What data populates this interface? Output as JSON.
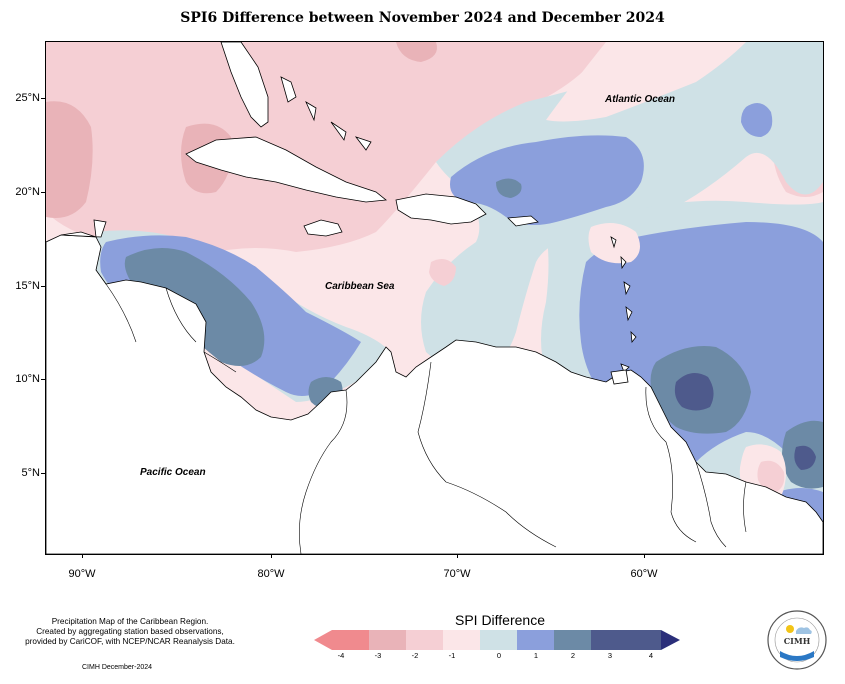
{
  "title": "SPI6 Difference between November 2024 and December 2024",
  "map": {
    "lat_labels": [
      "25°N",
      "20°N",
      "15°N",
      "10°N",
      "5°N"
    ],
    "lon_labels": [
      "90°W",
      "80°W",
      "70°W",
      "60°W"
    ],
    "labels": {
      "atlantic": "Atlantic Ocean",
      "caribbean": "Caribbean Sea",
      "pacific": "Pacific Ocean"
    }
  },
  "legend": {
    "title": "SPI Difference",
    "ticks": [
      "-4",
      "-3",
      "-2",
      "-1",
      "0",
      "1",
      "2",
      "3",
      "4"
    ],
    "colors": {
      "c_neg4": "#f08a8e",
      "c_neg3": "#e9b3b8",
      "c_neg2": "#f5cfd4",
      "c_neg1": "#fbe6e8",
      "c_pos0": "#cfe1e6",
      "c_pos1": "#8b9fdc",
      "c_pos2": "#6c8aa6",
      "c_pos3": "#4e5a8c",
      "c_pos4": "#2b2f7a"
    }
  },
  "footer": {
    "note_line1": "Precipitation Map of the Caribbean Region.",
    "note_line2": "Created by aggregating station based observations,",
    "note_line3": "provided by CariCOF, with NCEP/NCAR Reanalysis Data.",
    "date": "CIMH December-2024"
  },
  "logo": {
    "text": "CIMH",
    "icon": "cimh-logo-icon"
  }
}
